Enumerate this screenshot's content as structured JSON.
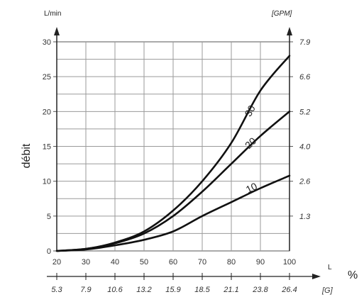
{
  "chart_data": {
    "type": "line",
    "ylabel": "débit",
    "y_unit": "L/min",
    "y2_unit": "[GPM]",
    "x_unit": "L",
    "x_percent": "%",
    "x2_unit": "[G]",
    "xlim": [
      20,
      100
    ],
    "ylim": [
      0,
      30
    ],
    "x_ticks": [
      "20",
      "30",
      "40",
      "50",
      "60",
      "70",
      "80",
      "90",
      "100"
    ],
    "y_ticks": [
      "0",
      "5",
      "10",
      "15",
      "20",
      "25",
      "30"
    ],
    "x2_ticks": [
      "5.3",
      "7.9",
      "10.6",
      "13.2",
      "15.9",
      "18.5",
      "21.1",
      "23.8",
      "26.4"
    ],
    "y2_ticks": [
      {
        "label": "1.3",
        "y": 5
      },
      {
        "label": "2.6",
        "y": 10
      },
      {
        "label": "4.0",
        "y": 15
      },
      {
        "label": "5.2",
        "y": 20
      },
      {
        "label": "6.6",
        "y": 25
      },
      {
        "label": "7.9",
        "y": 30
      }
    ],
    "grid": true,
    "series": [
      {
        "name": "10",
        "x": [
          20,
          30,
          40,
          50,
          60,
          70,
          80,
          90,
          100
        ],
        "y": [
          0,
          0.2,
          0.8,
          1.6,
          2.8,
          5.0,
          7.0,
          9.0,
          10.8
        ]
      },
      {
        "name": "20",
        "x": [
          20,
          30,
          40,
          50,
          60,
          70,
          80,
          90,
          100
        ],
        "y": [
          0,
          0.3,
          1.1,
          2.5,
          5.0,
          8.5,
          12.5,
          16.5,
          20.0
        ]
      },
      {
        "name": "30",
        "x": [
          20,
          30,
          40,
          50,
          60,
          70,
          80,
          90,
          100
        ],
        "y": [
          0,
          0.3,
          1.2,
          2.8,
          5.8,
          10.0,
          15.5,
          23.0,
          28.0
        ]
      }
    ]
  }
}
